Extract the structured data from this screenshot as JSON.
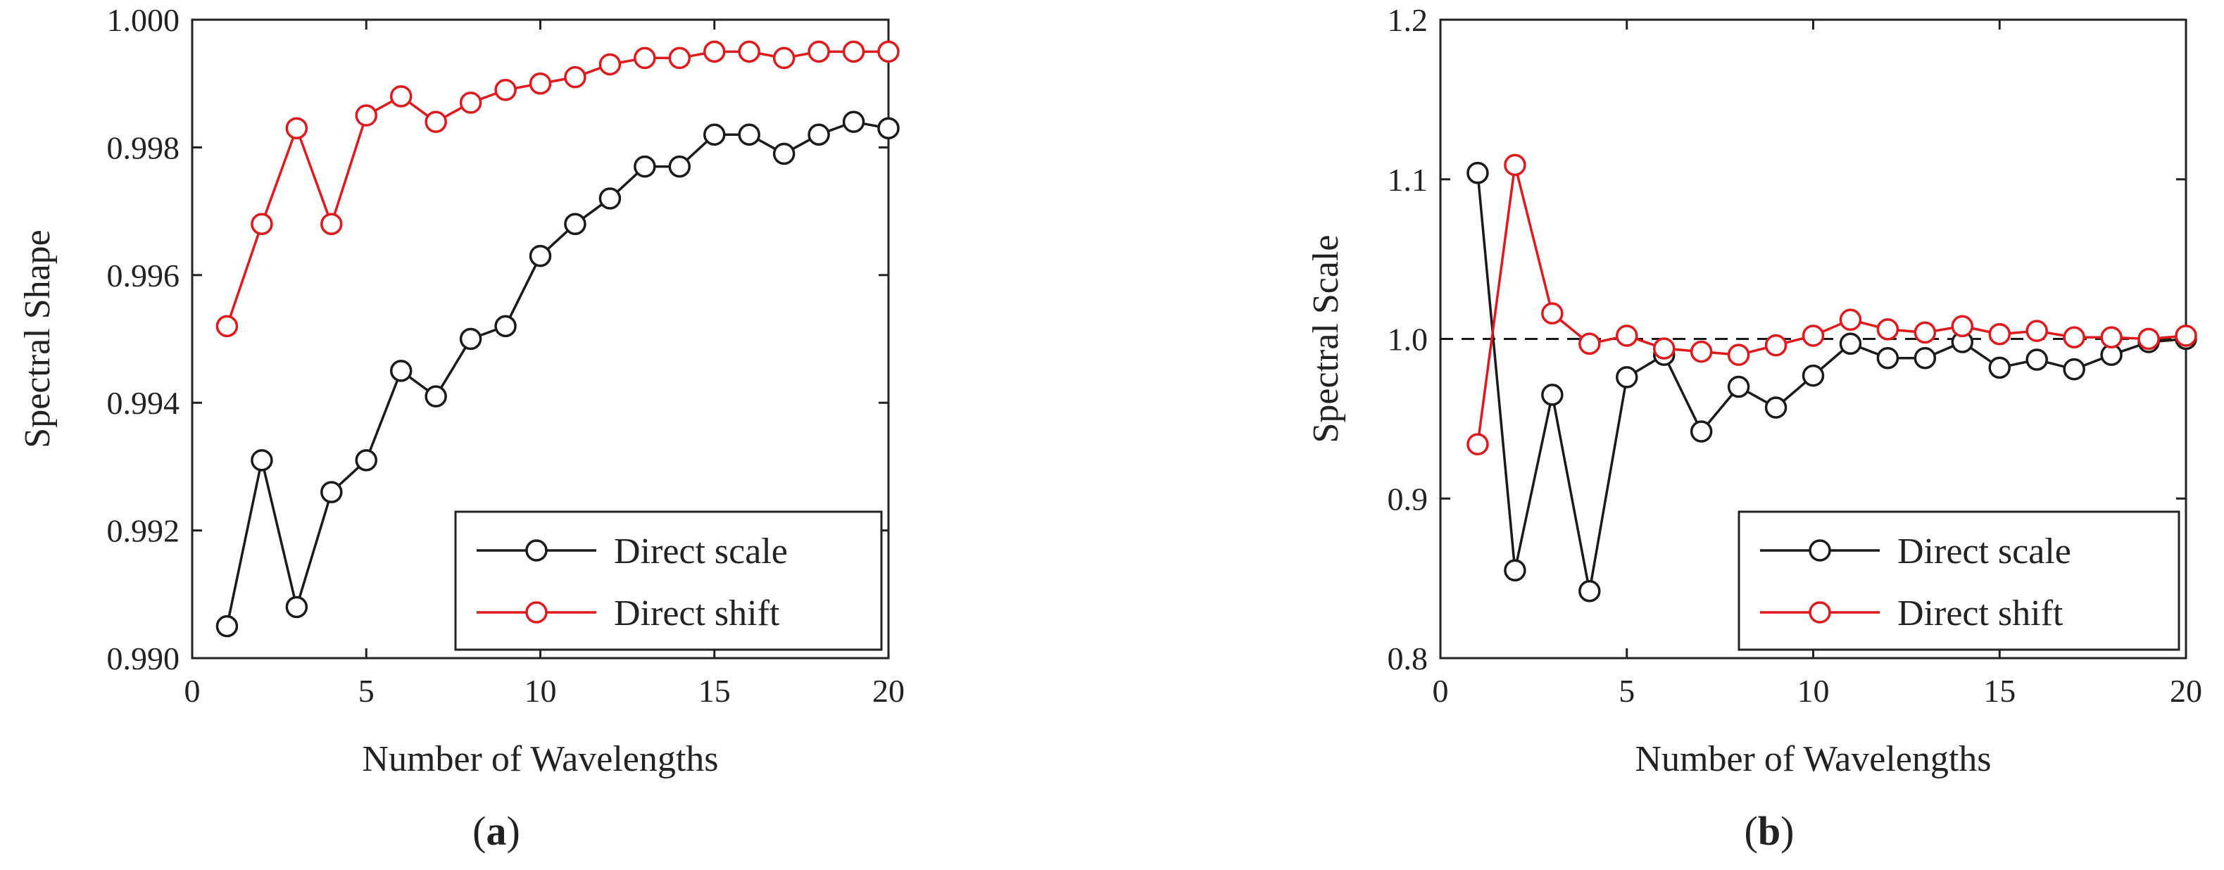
{
  "chart_data": [
    {
      "type": "line",
      "panel_label": "(a)",
      "xlabel": "Number of Wavelengths",
      "ylabel": "Spectral Shape",
      "xlim": [
        0,
        20
      ],
      "ylim": [
        0.99,
        1.0
      ],
      "x_ticks": [
        0,
        5,
        10,
        15,
        20
      ],
      "x_tick_labels": [
        "0",
        "5",
        "10",
        "15",
        "20"
      ],
      "y_ticks": [
        0.99,
        0.992,
        0.994,
        0.996,
        0.998,
        1.0
      ],
      "y_tick_labels": [
        "0.990",
        "0.992",
        "0.994",
        "0.996",
        "0.998",
        "1.000"
      ],
      "grid": false,
      "legend_position": "bottom-right",
      "reference_line": null,
      "x": [
        1,
        2,
        3,
        4,
        5,
        6,
        7,
        8,
        9,
        10,
        11,
        12,
        13,
        14,
        15,
        16,
        17,
        18,
        19,
        20
      ],
      "series": [
        {
          "name": "Direct scale",
          "color": "#1a1a1a",
          "values": [
            0.9905,
            0.9931,
            0.9908,
            0.9926,
            0.9931,
            0.9945,
            0.9941,
            0.995,
            0.9952,
            0.9963,
            0.9968,
            0.9972,
            0.9977,
            0.9977,
            0.9982,
            0.9982,
            0.9979,
            0.9982,
            0.9984,
            0.9983
          ]
        },
        {
          "name": "Direct shift",
          "color": "#e0191c",
          "values": [
            0.9952,
            0.9968,
            0.9983,
            0.9968,
            0.9985,
            0.9988,
            0.9984,
            0.9987,
            0.9989,
            0.999,
            0.9991,
            0.9993,
            0.9994,
            0.9994,
            0.9995,
            0.9995,
            0.9994,
            0.9995,
            0.9995,
            0.9995
          ]
        }
      ]
    },
    {
      "type": "line",
      "panel_label": "(b)",
      "xlabel": "Number of Wavelengths",
      "ylabel": "Spectral Scale",
      "xlim": [
        0,
        20
      ],
      "ylim": [
        0.8,
        1.2
      ],
      "x_ticks": [
        0,
        5,
        10,
        15,
        20
      ],
      "x_tick_labels": [
        "0",
        "5",
        "10",
        "15",
        "20"
      ],
      "y_ticks": [
        0.8,
        0.9,
        1.0,
        1.1,
        1.2
      ],
      "y_tick_labels": [
        "0.8",
        "0.9",
        "1.0",
        "1.1",
        "1.2"
      ],
      "grid": false,
      "legend_position": "bottom-right",
      "reference_line": {
        "y": 1.0,
        "style": "dashed",
        "color": "#1a1a1a"
      },
      "x": [
        1,
        2,
        3,
        4,
        5,
        6,
        7,
        8,
        9,
        10,
        11,
        12,
        13,
        14,
        15,
        16,
        17,
        18,
        19,
        20
      ],
      "series": [
        {
          "name": "Direct scale",
          "color": "#1a1a1a",
          "values": [
            1.104,
            0.855,
            0.965,
            0.842,
            0.976,
            0.99,
            0.942,
            0.97,
            0.957,
            0.977,
            0.997,
            0.988,
            0.988,
            0.998,
            0.982,
            0.987,
            0.981,
            0.99,
            0.998,
            1.0
          ]
        },
        {
          "name": "Direct shift",
          "color": "#e0191c",
          "values": [
            0.934,
            1.109,
            1.016,
            0.997,
            1.002,
            0.994,
            0.992,
            0.99,
            0.996,
            1.002,
            1.012,
            1.006,
            1.004,
            1.008,
            1.003,
            1.005,
            1.001,
            1.001,
            1.0,
            1.002
          ]
        }
      ]
    }
  ]
}
